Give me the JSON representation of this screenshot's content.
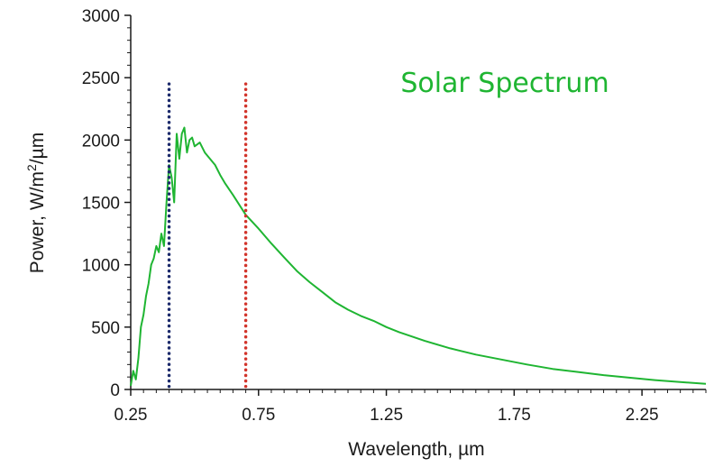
{
  "chart_data": {
    "type": "line",
    "title": "Solar Spectrum",
    "xlabel": "Wavelength, µm",
    "ylabel_prefix": "Power, W/m",
    "ylabel_sup": "2",
    "ylabel_suffix": "/µm",
    "xlim": [
      0.25,
      2.5
    ],
    "ylim": [
      0,
      3000
    ],
    "x_ticks": [
      0.25,
      0.75,
      1.25,
      1.75,
      2.25
    ],
    "x_tick_labels": [
      "0.25",
      "0.75",
      "1.25",
      "1.75",
      "2.25"
    ],
    "y_ticks": [
      0,
      500,
      1000,
      1500,
      2000,
      2500,
      3000
    ],
    "y_tick_labels": [
      "0",
      "500",
      "1000",
      "1500",
      "2000",
      "2500",
      "3000"
    ],
    "grid": false,
    "series": [
      {
        "color": "#1fb532",
        "x": [
          0.25,
          0.26,
          0.27,
          0.28,
          0.29,
          0.3,
          0.31,
          0.32,
          0.33,
          0.34,
          0.35,
          0.36,
          0.37,
          0.38,
          0.39,
          0.4,
          0.41,
          0.42,
          0.43,
          0.44,
          0.45,
          0.46,
          0.47,
          0.48,
          0.49,
          0.5,
          0.52,
          0.54,
          0.56,
          0.58,
          0.6,
          0.62,
          0.65,
          0.7,
          0.75,
          0.8,
          0.85,
          0.9,
          0.95,
          1.0,
          1.05,
          1.1,
          1.15,
          1.2,
          1.25,
          1.3,
          1.4,
          1.5,
          1.6,
          1.7,
          1.8,
          1.9,
          2.0,
          2.1,
          2.2,
          2.3,
          2.4,
          2.5
        ],
        "y": [
          30,
          150,
          80,
          250,
          500,
          600,
          750,
          850,
          1000,
          1050,
          1150,
          1100,
          1250,
          1150,
          1500,
          1800,
          1700,
          1500,
          2050,
          1850,
          2050,
          2100,
          1900,
          2000,
          2020,
          1950,
          1980,
          1900,
          1850,
          1800,
          1720,
          1650,
          1560,
          1400,
          1290,
          1170,
          1060,
          950,
          860,
          780,
          700,
          640,
          590,
          550,
          500,
          460,
          390,
          330,
          280,
          240,
          200,
          165,
          140,
          115,
          95,
          75,
          60,
          45
        ]
      }
    ],
    "markers": [
      {
        "x": 0.4,
        "y_top": 2450,
        "color": "#1c2a6b"
      },
      {
        "x": 0.7,
        "y_top": 2450,
        "color": "#d2342b"
      }
    ],
    "colors": {
      "title": "#1fb532",
      "axis": "#1a1a1a"
    }
  }
}
